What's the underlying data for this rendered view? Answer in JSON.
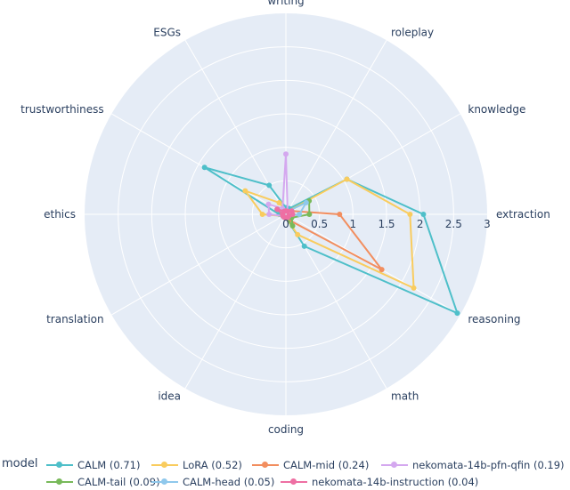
{
  "chart_data": {
    "type": "radar",
    "title": "",
    "axes": [
      "writing",
      "roleplay",
      "knowledge",
      "extraction",
      "reasoning",
      "math",
      "coding",
      "idea",
      "translation",
      "ethics",
      "trustworthiness",
      "ESGs"
    ],
    "radial_ticks": [
      "0",
      "0.5",
      "1",
      "1.5",
      "2",
      "2.5",
      "3"
    ],
    "radial_range": [
      0,
      3
    ],
    "grid": true,
    "legend_title": "model",
    "legend_position": "bottom",
    "series": [
      {
        "name": "CALM (0.71)",
        "color": "#4ebfc9",
        "values": [
          0.1,
          0.1,
          1.05,
          2.05,
          2.95,
          0.55,
          0.05,
          0.05,
          0.05,
          0.1,
          1.4,
          0.5
        ]
      },
      {
        "name": "LoRA (0.52)",
        "color": "#f9cc5e",
        "values": [
          0.05,
          0.05,
          1.05,
          1.85,
          2.2,
          0.35,
          0.05,
          0.05,
          0.05,
          0.35,
          0.7,
          0.2
        ]
      },
      {
        "name": "CALM-mid (0.24)",
        "color": "#f28e5f",
        "values": [
          0.05,
          0.05,
          0.1,
          0.8,
          1.65,
          0.1,
          0.05,
          0.05,
          0.05,
          0.05,
          0.05,
          0.05
        ]
      },
      {
        "name": "nekomata-14b-pfn-qfin (0.19)",
        "color": "#d4a8ef",
        "values": [
          0.9,
          0.05,
          0.1,
          0.1,
          0.05,
          0.05,
          0.05,
          0.05,
          0.05,
          0.25,
          0.3,
          0.1
        ]
      },
      {
        "name": "CALM-tail (0.09)",
        "color": "#78b95a",
        "values": [
          0.05,
          0.05,
          0.4,
          0.35,
          0.1,
          0.2,
          0.05,
          0.05,
          0.05,
          0.05,
          0.15,
          0.05
        ]
      },
      {
        "name": "CALM-head (0.05)",
        "color": "#8fc8ec",
        "values": [
          0.05,
          0.05,
          0.35,
          0.2,
          0.05,
          0.05,
          0.05,
          0.05,
          0.05,
          0.05,
          0.05,
          0.05
        ]
      },
      {
        "name": "nekomata-14b-instruction (0.04)",
        "color": "#ee6fa3",
        "values": [
          0.05,
          0.05,
          0.1,
          0.1,
          0.05,
          0.05,
          0.05,
          0.05,
          0.05,
          0.05,
          0.15,
          0.05
        ]
      }
    ]
  }
}
